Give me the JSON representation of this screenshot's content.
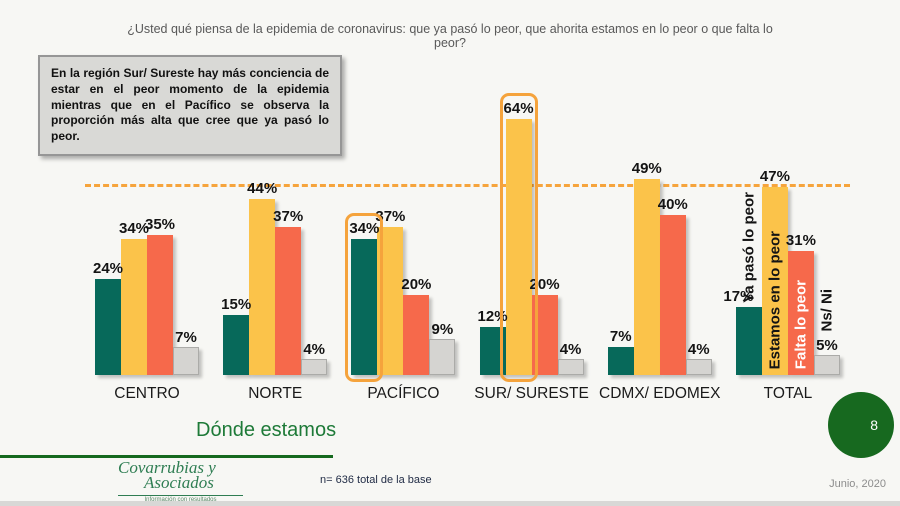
{
  "slide": {
    "title": "¿Usted qué piensa de la epidemia de coronavirus: que ya pasó lo peor, que ahorita estamos en lo peor o que falta lo peor?",
    "insight": "En la región Sur/ Sureste hay más conciencia de estar en el peor momento de la epidemia mientras que en el Pacífico se observa la proporción más alta que cree que ya pasó lo peor.",
    "section_title": "Dónde estamos",
    "base_note": "n= 636 total de la base",
    "date": "Junio, 2020",
    "page_number": "8",
    "logo": {
      "line1": "Covarrubias y",
      "line2": "Asociados",
      "tagline": "Información con resultados"
    }
  },
  "chart_data": {
    "type": "bar",
    "categories": [
      "CENTRO",
      "NORTE",
      "PACÍFICO",
      "SUR/ SURESTE",
      "CDMX/ EDOMEX",
      "TOTAL"
    ],
    "series": [
      {
        "name": "Ya pasó lo peor",
        "color": "#07695A",
        "values": [
          24,
          15,
          34,
          12,
          7,
          17
        ]
      },
      {
        "name": "Estamos en lo peor",
        "color": "#FBC34A",
        "values": [
          34,
          44,
          37,
          64,
          49,
          47
        ]
      },
      {
        "name": "Falta lo peor",
        "color": "#F6694B",
        "values": [
          35,
          37,
          20,
          20,
          40,
          31
        ]
      },
      {
        "name": "Ns/ Ni",
        "color": "#D5D4D1",
        "values": [
          7,
          4,
          9,
          4,
          4,
          5
        ]
      }
    ],
    "value_suffix": "%",
    "ylim": [
      0,
      70
    ],
    "grid": false,
    "legend_position": "rotated-labels-on-total-group",
    "reference_line": {
      "value": 47,
      "style": "dashed",
      "color": "#F6A43C"
    },
    "highlights": [
      {
        "category": "PACÍFICO",
        "series": "Ya pasó lo peor"
      },
      {
        "category": "SUR/ SURESTE",
        "series": "Estamos en lo peor"
      }
    ]
  }
}
